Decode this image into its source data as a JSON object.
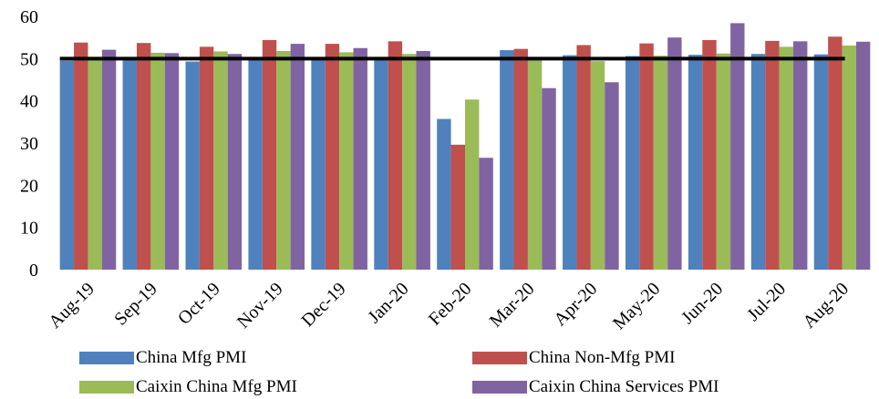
{
  "chart_data": {
    "type": "bar",
    "categories": [
      "Aug-19",
      "Sep-19",
      "Oct-19",
      "Nov-19",
      "Dec-19",
      "Jan-20",
      "Feb-20",
      "Mar-20",
      "Apr-20",
      "May-20",
      "Jun-20",
      "Jul-20",
      "Aug-20"
    ],
    "series": [
      {
        "name": "China Mfg PMI",
        "color": "#4F81BD",
        "values": [
          49.5,
          49.8,
          49.3,
          50.2,
          50.2,
          50.0,
          35.7,
          52.0,
          50.8,
          50.6,
          50.9,
          51.1,
          51.0
        ]
      },
      {
        "name": "China Non-Mfg PMI",
        "color": "#C0504D",
        "values": [
          53.8,
          53.7,
          52.8,
          54.4,
          53.5,
          54.1,
          29.6,
          52.3,
          53.2,
          53.6,
          54.4,
          54.2,
          55.2
        ]
      },
      {
        "name": "Caixin China Mfg PMI",
        "color": "#9BBB59",
        "values": [
          50.4,
          51.4,
          51.7,
          51.8,
          51.5,
          51.1,
          40.3,
          50.1,
          49.4,
          50.7,
          51.2,
          52.8,
          53.1
        ]
      },
      {
        "name": "Caixin China Services PMI",
        "color": "#8064A2",
        "values": [
          52.1,
          51.3,
          51.1,
          53.5,
          52.5,
          51.8,
          26.5,
          43.0,
          44.4,
          55.0,
          58.4,
          54.1,
          54.0
        ]
      }
    ],
    "reference_line": {
      "value": 50,
      "color": "#000000"
    },
    "yticks": [
      "0",
      "10",
      "20",
      "30",
      "40",
      "50",
      "60"
    ],
    "ylim": [
      0,
      60
    ],
    "title": "",
    "xlabel": "",
    "ylabel": "",
    "grid": false,
    "legend_position": "bottom"
  }
}
